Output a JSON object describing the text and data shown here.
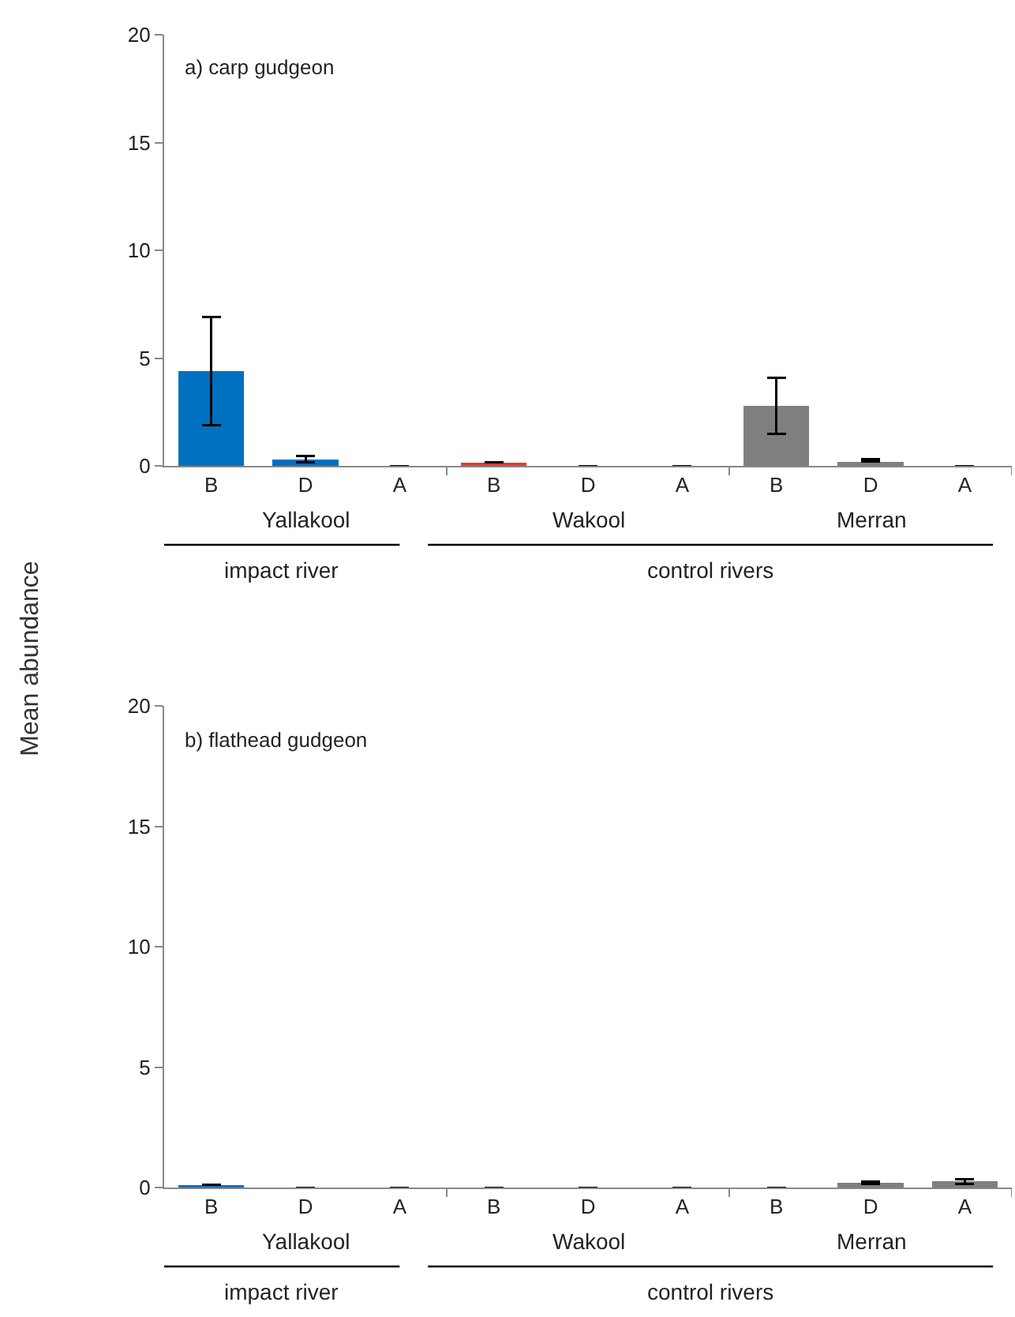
{
  "chart_data": [
    {
      "type": "bar",
      "title": "a) carp gudgeon",
      "ylabel": "Mean abundance",
      "categories": [
        "B",
        "D",
        "A",
        "B",
        "D",
        "A",
        "B",
        "D",
        "A"
      ],
      "values": [
        4.4,
        0.3,
        0,
        0.15,
        0,
        0,
        2.8,
        0.2,
        0
      ],
      "errors": [
        2.5,
        0.15,
        null,
        null,
        null,
        null,
        1.3,
        [
          0.2,
          0.3
        ],
        null
      ],
      "colors": [
        "#0070c0",
        "#0070c0",
        "#0070c0",
        "#e03c31",
        "#e03c31",
        "#e03c31",
        "#7f7f7f",
        "#7f7f7f",
        "#7f7f7f"
      ],
      "annotations": [
        "Yallakool",
        "Wakool",
        "Merran",
        "impact river",
        "control rivers"
      ],
      "ylim": [
        0,
        20
      ],
      "yticks": [
        0,
        5,
        10,
        15,
        20
      ],
      "grid": false
    },
    {
      "type": "bar",
      "title": "b) flathead gudgeon",
      "categories": [
        "B",
        "D",
        "A",
        "B",
        "D",
        "A",
        "B",
        "D",
        "A"
      ],
      "values": [
        0.1,
        0,
        0,
        0,
        0,
        0,
        0,
        0.2,
        0.25
      ],
      "errors": [
        null,
        null,
        null,
        null,
        null,
        null,
        null,
        0.05,
        0.1
      ],
      "colors": [
        "#0070c0",
        "#0070c0",
        "#0070c0",
        "#e03c31",
        "#e03c31",
        "#e03c31",
        "#7f7f7f",
        "#7f7f7f",
        "#7f7f7f"
      ],
      "annotations": [
        "Yallakool",
        "Wakool",
        "Merran",
        "impact river",
        "control rivers"
      ],
      "ylim": [
        0,
        20
      ],
      "yticks": [
        0,
        5,
        10,
        15,
        20
      ],
      "grid": false
    }
  ]
}
